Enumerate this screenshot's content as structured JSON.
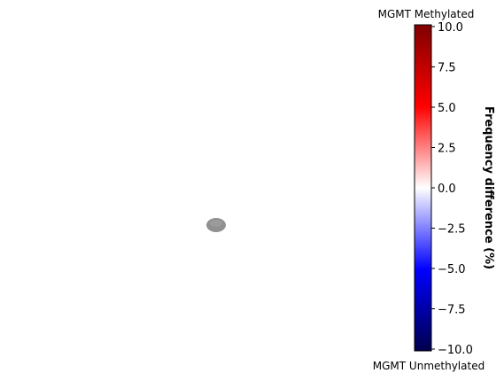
{
  "chart_data": {
    "type": "heatmap",
    "title": "",
    "colormap": "seismic",
    "colorbar": {
      "label": "Frequency difference (%)",
      "top_label": "MGMT Methylated",
      "bottom_label": "MGMT Unmethylated",
      "range": [
        -10.0,
        10.0
      ],
      "ticks": [
        10.0,
        7.5,
        5.0,
        2.5,
        0.0,
        -2.5,
        -5.0,
        -7.5,
        -10.0
      ],
      "tick_labels": [
        "10.0",
        "7.5",
        "5.0",
        "2.5",
        "0.0",
        "−2.5",
        "−5.0",
        "−7.5",
        "−10.0"
      ]
    },
    "regions": [
      {
        "name": "gray blob",
        "color": "#909090"
      }
    ]
  }
}
